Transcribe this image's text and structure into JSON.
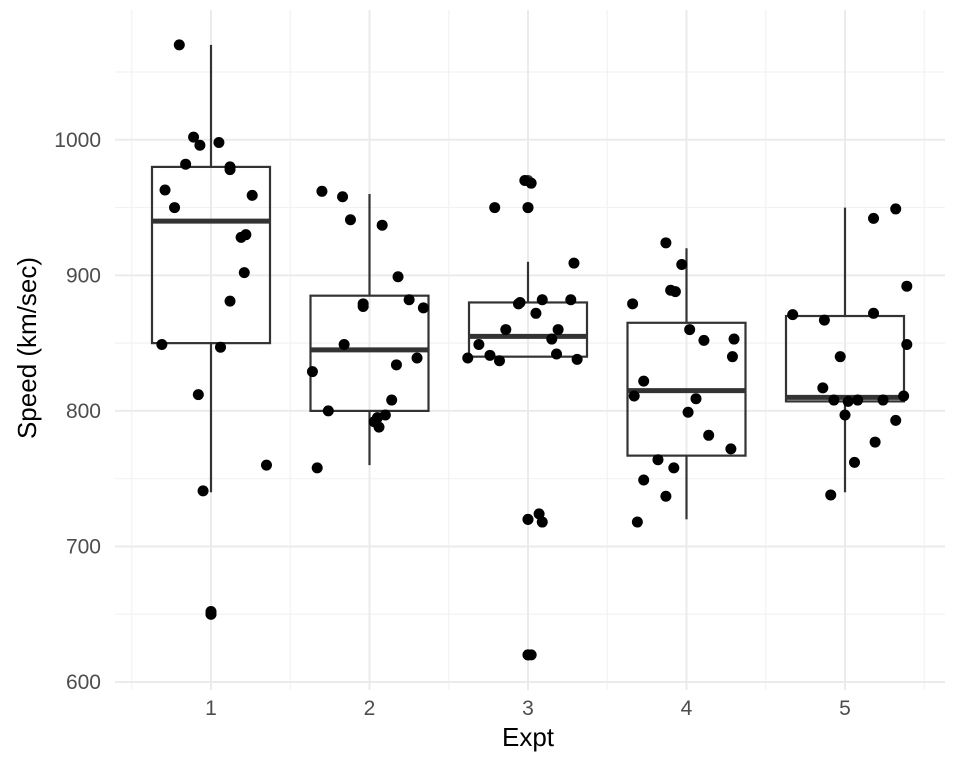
{
  "chart_data": {
    "type": "boxplot",
    "xlabel": "Expt",
    "ylabel": "Speed (km/sec)",
    "ylim": [
      590,
      1080
    ],
    "yticks": [
      600,
      700,
      800,
      900,
      1000
    ],
    "grid": true,
    "categories": [
      "1",
      "2",
      "3",
      "4",
      "5"
    ],
    "boxes": [
      {
        "category": "1",
        "min": 740,
        "q1": 850,
        "median": 940,
        "q3": 980,
        "max": 1070,
        "outliers": [
          650
        ]
      },
      {
        "category": "2",
        "min": 760,
        "q1": 800,
        "median": 845,
        "q3": 885,
        "max": 960,
        "outliers": []
      },
      {
        "category": "3",
        "min": 840,
        "q1": 840,
        "median": 855,
        "q3": 880,
        "max": 910,
        "outliers": [
          620,
          720,
          950,
          970
        ]
      },
      {
        "category": "4",
        "min": 720,
        "q1": 767,
        "median": 815,
        "q3": 865,
        "max": 920,
        "outliers": []
      },
      {
        "category": "5",
        "min": 740,
        "q1": 807,
        "median": 810,
        "q3": 870,
        "max": 950,
        "outliers": []
      }
    ],
    "points": [
      {
        "category": "1",
        "jitter": -0.2,
        "y": 1070
      },
      {
        "category": "1",
        "jitter": -0.11,
        "y": 1002
      },
      {
        "category": "1",
        "jitter": 0.05,
        "y": 998
      },
      {
        "category": "1",
        "jitter": -0.07,
        "y": 996
      },
      {
        "category": "1",
        "jitter": -0.16,
        "y": 982
      },
      {
        "category": "1",
        "jitter": 0.12,
        "y": 980
      },
      {
        "category": "1",
        "jitter": 0.12,
        "y": 978
      },
      {
        "category": "1",
        "jitter": -0.29,
        "y": 963
      },
      {
        "category": "1",
        "jitter": 0.26,
        "y": 959
      },
      {
        "category": "1",
        "jitter": -0.23,
        "y": 950
      },
      {
        "category": "1",
        "jitter": 0.22,
        "y": 930
      },
      {
        "category": "1",
        "jitter": 0.19,
        "y": 928
      },
      {
        "category": "1",
        "jitter": 0.21,
        "y": 902
      },
      {
        "category": "1",
        "jitter": 0.12,
        "y": 881
      },
      {
        "category": "1",
        "jitter": -0.31,
        "y": 849
      },
      {
        "category": "1",
        "jitter": 0.06,
        "y": 847
      },
      {
        "category": "1",
        "jitter": -0.08,
        "y": 812
      },
      {
        "category": "1",
        "jitter": 0.35,
        "y": 760
      },
      {
        "category": "1",
        "jitter": -0.05,
        "y": 741
      },
      {
        "category": "1",
        "jitter": 0.0,
        "y": 652
      },
      {
        "category": "1",
        "jitter": 0.0,
        "y": 650
      },
      {
        "category": "2",
        "jitter": -0.3,
        "y": 962
      },
      {
        "category": "2",
        "jitter": -0.17,
        "y": 958
      },
      {
        "category": "2",
        "jitter": -0.12,
        "y": 941
      },
      {
        "category": "2",
        "jitter": 0.08,
        "y": 937
      },
      {
        "category": "2",
        "jitter": 0.18,
        "y": 899
      },
      {
        "category": "2",
        "jitter": 0.25,
        "y": 882
      },
      {
        "category": "2",
        "jitter": -0.04,
        "y": 879
      },
      {
        "category": "2",
        "jitter": -0.04,
        "y": 877
      },
      {
        "category": "2",
        "jitter": 0.34,
        "y": 876
      },
      {
        "category": "2",
        "jitter": -0.16,
        "y": 849
      },
      {
        "category": "2",
        "jitter": 0.3,
        "y": 839
      },
      {
        "category": "2",
        "jitter": 0.17,
        "y": 834
      },
      {
        "category": "2",
        "jitter": -0.36,
        "y": 829
      },
      {
        "category": "2",
        "jitter": 0.14,
        "y": 808
      },
      {
        "category": "2",
        "jitter": -0.26,
        "y": 800
      },
      {
        "category": "2",
        "jitter": 0.1,
        "y": 797
      },
      {
        "category": "2",
        "jitter": 0.05,
        "y": 795
      },
      {
        "category": "2",
        "jitter": 0.03,
        "y": 792
      },
      {
        "category": "2",
        "jitter": 0.06,
        "y": 788
      },
      {
        "category": "2",
        "jitter": -0.33,
        "y": 758
      },
      {
        "category": "3",
        "jitter": -0.02,
        "y": 970
      },
      {
        "category": "3",
        "jitter": 0.02,
        "y": 968
      },
      {
        "category": "3",
        "jitter": -0.21,
        "y": 950
      },
      {
        "category": "3",
        "jitter": 0.0,
        "y": 950
      },
      {
        "category": "3",
        "jitter": 0.29,
        "y": 909
      },
      {
        "category": "3",
        "jitter": 0.09,
        "y": 882
      },
      {
        "category": "3",
        "jitter": 0.27,
        "y": 882
      },
      {
        "category": "3",
        "jitter": -0.05,
        "y": 880
      },
      {
        "category": "3",
        "jitter": -0.06,
        "y": 879
      },
      {
        "category": "3",
        "jitter": 0.05,
        "y": 872
      },
      {
        "category": "3",
        "jitter": -0.31,
        "y": 849
      },
      {
        "category": "3",
        "jitter": -0.14,
        "y": 860
      },
      {
        "category": "3",
        "jitter": 0.19,
        "y": 860
      },
      {
        "category": "3",
        "jitter": 0.15,
        "y": 853
      },
      {
        "category": "3",
        "jitter": 0.18,
        "y": 842
      },
      {
        "category": "3",
        "jitter": -0.24,
        "y": 841
      },
      {
        "category": "3",
        "jitter": -0.38,
        "y": 839
      },
      {
        "category": "3",
        "jitter": 0.31,
        "y": 838
      },
      {
        "category": "3",
        "jitter": -0.18,
        "y": 837
      },
      {
        "category": "3",
        "jitter": 0.07,
        "y": 724
      },
      {
        "category": "3",
        "jitter": 0.09,
        "y": 718
      },
      {
        "category": "3",
        "jitter": 0.0,
        "y": 720
      },
      {
        "category": "3",
        "jitter": 0.0,
        "y": 620
      },
      {
        "category": "3",
        "jitter": 0.02,
        "y": 620
      },
      {
        "category": "4",
        "jitter": -0.13,
        "y": 924
      },
      {
        "category": "4",
        "jitter": -0.03,
        "y": 908
      },
      {
        "category": "4",
        "jitter": -0.1,
        "y": 889
      },
      {
        "category": "4",
        "jitter": -0.07,
        "y": 888
      },
      {
        "category": "4",
        "jitter": -0.34,
        "y": 879
      },
      {
        "category": "4",
        "jitter": 0.02,
        "y": 860
      },
      {
        "category": "4",
        "jitter": 0.3,
        "y": 853
      },
      {
        "category": "4",
        "jitter": 0.11,
        "y": 852
      },
      {
        "category": "4",
        "jitter": 0.29,
        "y": 840
      },
      {
        "category": "4",
        "jitter": -0.27,
        "y": 822
      },
      {
        "category": "4",
        "jitter": -0.33,
        "y": 811
      },
      {
        "category": "4",
        "jitter": 0.06,
        "y": 809
      },
      {
        "category": "4",
        "jitter": 0.01,
        "y": 799
      },
      {
        "category": "4",
        "jitter": 0.14,
        "y": 782
      },
      {
        "category": "4",
        "jitter": 0.28,
        "y": 772
      },
      {
        "category": "4",
        "jitter": -0.18,
        "y": 764
      },
      {
        "category": "4",
        "jitter": -0.08,
        "y": 758
      },
      {
        "category": "4",
        "jitter": -0.27,
        "y": 749
      },
      {
        "category": "4",
        "jitter": -0.13,
        "y": 737
      },
      {
        "category": "4",
        "jitter": -0.31,
        "y": 718
      },
      {
        "category": "5",
        "jitter": 0.32,
        "y": 949
      },
      {
        "category": "5",
        "jitter": 0.18,
        "y": 942
      },
      {
        "category": "5",
        "jitter": 0.39,
        "y": 892
      },
      {
        "category": "5",
        "jitter": -0.33,
        "y": 871
      },
      {
        "category": "5",
        "jitter": 0.18,
        "y": 872
      },
      {
        "category": "5",
        "jitter": -0.13,
        "y": 867
      },
      {
        "category": "5",
        "jitter": 0.39,
        "y": 849
      },
      {
        "category": "5",
        "jitter": -0.03,
        "y": 840
      },
      {
        "category": "5",
        "jitter": -0.14,
        "y": 817
      },
      {
        "category": "5",
        "jitter": 0.37,
        "y": 811
      },
      {
        "category": "5",
        "jitter": -0.07,
        "y": 808
      },
      {
        "category": "5",
        "jitter": 0.02,
        "y": 807
      },
      {
        "category": "5",
        "jitter": 0.08,
        "y": 808
      },
      {
        "category": "5",
        "jitter": 0.24,
        "y": 808
      },
      {
        "category": "5",
        "jitter": 0.0,
        "y": 797
      },
      {
        "category": "5",
        "jitter": 0.32,
        "y": 793
      },
      {
        "category": "5",
        "jitter": 0.19,
        "y": 777
      },
      {
        "category": "5",
        "jitter": 0.06,
        "y": 762
      },
      {
        "category": "5",
        "jitter": -0.09,
        "y": 738
      }
    ]
  }
}
